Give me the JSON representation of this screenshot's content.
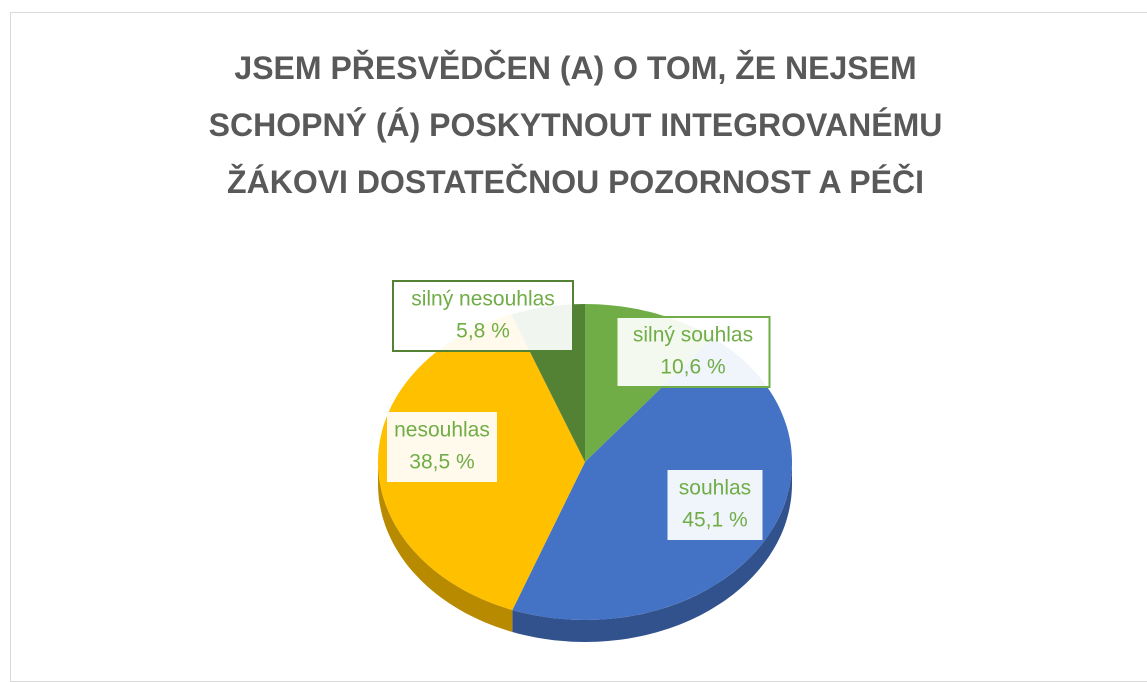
{
  "chart_data": {
    "type": "pie3d",
    "title": "JSEM PŘESVĚDČEN (A) O TOM, ŽE NEJSEM SCHOPNÝ (Á) POSKYTNOUT INTEGROVANÉMU ŽÁKOVI DOSTATEČNOU POZORNOST A PÉČI",
    "categories": [
      "silný souhlas",
      "souhlas",
      "nesouhlas",
      "silný nesouhlas"
    ],
    "values": [
      10.6,
      45.1,
      38.5,
      5.8
    ],
    "value_labels": [
      "10,6 %",
      "45,1 %",
      "38,5 %",
      "5,8 %"
    ],
    "colors": [
      "#70ad47",
      "#4472c4",
      "#ffc000",
      "#548235"
    ]
  }
}
